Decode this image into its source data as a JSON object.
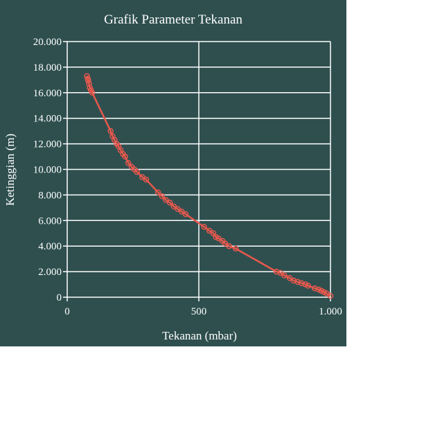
{
  "colors": {
    "background": "#2f4f4f",
    "grid": "#ffffff",
    "text": "#ffffff",
    "series": "#e8584d"
  },
  "chart_data": {
    "type": "line",
    "title": "Grafik Parameter Tekanan",
    "xlabel": "Tekanan (mbar)",
    "ylabel": "Ketinggian (m)",
    "xlim": [
      0,
      1000
    ],
    "ylim": [
      0,
      20000
    ],
    "x_ticks": [
      {
        "value": 0,
        "label": "0"
      },
      {
        "value": 500,
        "label": "500"
      },
      {
        "value": 1000,
        "label": "1.000"
      }
    ],
    "y_ticks": [
      {
        "value": 0,
        "label": "0"
      },
      {
        "value": 2000,
        "label": "2.000"
      },
      {
        "value": 4000,
        "label": "4.000"
      },
      {
        "value": 6000,
        "label": "6.000"
      },
      {
        "value": 8000,
        "label": "8.000"
      },
      {
        "value": 10000,
        "label": "10.000"
      },
      {
        "value": 12000,
        "label": "12.000"
      },
      {
        "value": 14000,
        "label": "14.000"
      },
      {
        "value": 16000,
        "label": "16.000"
      },
      {
        "value": 18000,
        "label": "18.000"
      },
      {
        "value": 20000,
        "label": "20.000"
      }
    ],
    "grid": true,
    "legend": "none",
    "series": [
      {
        "x": [
          75,
          78,
          80,
          83,
          86,
          90,
          95,
          165,
          172,
          180,
          188,
          195,
          203,
          212,
          220,
          232,
          245,
          255,
          265,
          285,
          300,
          345,
          360,
          375,
          390,
          405,
          420,
          435,
          450,
          520,
          540,
          555,
          565,
          575,
          590,
          600,
          615,
          640,
          795,
          810,
          825,
          845,
          860,
          875,
          890,
          905,
          915,
          940,
          955,
          965,
          975,
          985,
          1000
        ],
        "y": [
          17300,
          17100,
          16950,
          16700,
          16400,
          16200,
          16000,
          13000,
          12600,
          12300,
          12000,
          11800,
          11500,
          11200,
          11000,
          10500,
          10200,
          10000,
          9800,
          9400,
          9200,
          8200,
          7900,
          7600,
          7400,
          7100,
          6900,
          6700,
          6500,
          5500,
          5200,
          5000,
          4700,
          4600,
          4400,
          4200,
          4000,
          3800,
          2000,
          1900,
          1700,
          1500,
          1300,
          1200,
          1100,
          1000,
          900,
          700,
          600,
          500,
          400,
          300,
          100
        ]
      }
    ]
  }
}
